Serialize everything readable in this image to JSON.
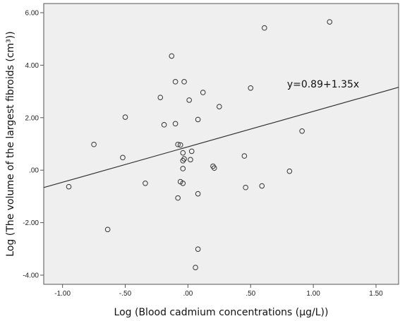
{
  "chart_data": {
    "type": "scatter",
    "xlabel": "Log (Blood cadmium concentrations (μg/L))",
    "ylabel": "Log (The volume of the largest fibroids (cm³))",
    "xlim": [
      -1.15,
      1.68
    ],
    "ylim": [
      -4.35,
      6.35
    ],
    "x_ticks": [
      -1.0,
      -0.5,
      0.0,
      0.5,
      1.0,
      1.5
    ],
    "x_tick_labels": [
      "-1.00",
      "-.50",
      ".00",
      ".50",
      "1.00",
      "1.50"
    ],
    "y_ticks": [
      -4.0,
      -2.0,
      0.0,
      2.0,
      4.0,
      6.0
    ],
    "y_tick_labels": [
      "-4.00",
      "-2.00",
      ".00",
      "2.00",
      "4.00",
      "6.00"
    ],
    "grid": false,
    "background_color": "#efefef",
    "marker_color": "#333333",
    "points": [
      {
        "x": -0.95,
        "y": -0.63
      },
      {
        "x": -0.75,
        "y": 0.98
      },
      {
        "x": -0.64,
        "y": -2.26
      },
      {
        "x": -0.52,
        "y": 0.48
      },
      {
        "x": -0.5,
        "y": 2.02
      },
      {
        "x": -0.34,
        "y": -0.5
      },
      {
        "x": -0.22,
        "y": 2.77
      },
      {
        "x": -0.19,
        "y": 1.73
      },
      {
        "x": -0.13,
        "y": 4.35
      },
      {
        "x": -0.1,
        "y": 3.37
      },
      {
        "x": -0.1,
        "y": 1.77
      },
      {
        "x": -0.08,
        "y": -1.06
      },
      {
        "x": -0.08,
        "y": 0.98
      },
      {
        "x": -0.06,
        "y": 0.96
      },
      {
        "x": -0.06,
        "y": -0.44
      },
      {
        "x": -0.04,
        "y": 0.36
      },
      {
        "x": -0.04,
        "y": 0.06
      },
      {
        "x": -0.04,
        "y": 0.66
      },
      {
        "x": -0.03,
        "y": 3.37
      },
      {
        "x": -0.03,
        "y": 0.43
      },
      {
        "x": -0.04,
        "y": -0.5
      },
      {
        "x": 0.01,
        "y": 2.67
      },
      {
        "x": 0.02,
        "y": 0.4
      },
      {
        "x": 0.03,
        "y": 0.72
      },
      {
        "x": 0.06,
        "y": -3.71
      },
      {
        "x": 0.08,
        "y": -3.01
      },
      {
        "x": 0.08,
        "y": 1.93
      },
      {
        "x": 0.08,
        "y": -0.9
      },
      {
        "x": 0.12,
        "y": 2.96
      },
      {
        "x": 0.2,
        "y": 0.15
      },
      {
        "x": 0.21,
        "y": 0.08
      },
      {
        "x": 0.25,
        "y": 2.42
      },
      {
        "x": 0.45,
        "y": 0.54
      },
      {
        "x": 0.46,
        "y": -0.66
      },
      {
        "x": 0.5,
        "y": 3.13
      },
      {
        "x": 0.59,
        "y": -0.6
      },
      {
        "x": 0.61,
        "y": 5.42
      },
      {
        "x": 0.81,
        "y": -0.04
      },
      {
        "x": 0.91,
        "y": 1.49
      },
      {
        "x": 1.13,
        "y": 5.65
      }
    ],
    "fit_line": {
      "intercept": 0.89,
      "slope": 1.35
    },
    "annotations": [
      {
        "text": "y=0.89+1.35x",
        "x": 0.79,
        "y": 3.15
      }
    ]
  }
}
